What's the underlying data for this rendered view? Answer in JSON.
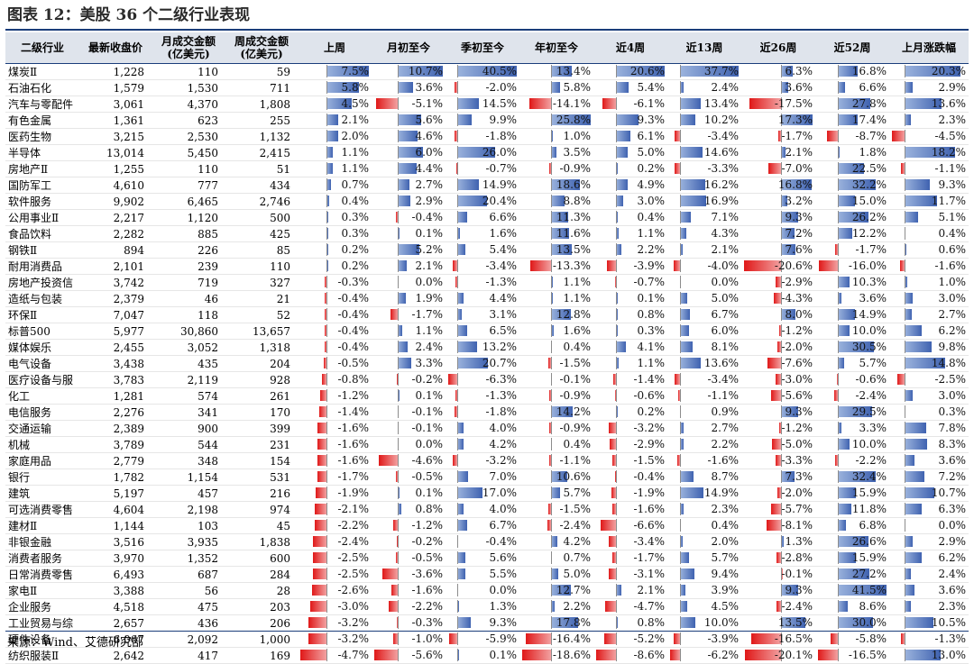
{
  "title": "图表 12：美股 36 个二级行业表现",
  "source": "来源：Wind、艾德研究部",
  "headers": [
    "二级行业",
    "最新收盘价",
    "月成交金额\n(亿美元)",
    "周成交金额\n(亿美元)",
    "上周",
    "月初至今",
    "季初至今",
    "年初至今",
    "近4周",
    "近13周",
    "近26周",
    "近52周",
    "上月涨跌幅"
  ],
  "colors": {
    "positive": "#3f62b0",
    "negative": "#e01818",
    "header_bg": "#dfe4ec",
    "rule": "#1a3d7a"
  },
  "rows": [
    {
      "name": "煤炭Ⅱ",
      "close": "1,228",
      "month_amt": "110",
      "week_amt": "59",
      "perf": [
        7.5,
        10.7,
        40.5,
        13.4,
        20.6,
        37.7,
        6.3,
        16.8,
        20.3
      ]
    },
    {
      "name": "石油石化",
      "close": "1,579",
      "month_amt": "1,530",
      "week_amt": "711",
      "perf": [
        5.8,
        3.6,
        -2.0,
        5.8,
        5.4,
        2.4,
        3.6,
        6.6,
        2.9
      ]
    },
    {
      "name": "汽车与零配件",
      "close": "3,061",
      "month_amt": "4,370",
      "week_amt": "1,808",
      "perf": [
        4.5,
        -5.1,
        14.5,
        -14.1,
        -6.1,
        13.4,
        -17.5,
        27.8,
        13.6
      ]
    },
    {
      "name": "有色金属",
      "close": "1,361",
      "month_amt": "623",
      "week_amt": "255",
      "perf": [
        2.1,
        5.6,
        9.9,
        25.8,
        9.3,
        10.2,
        17.3,
        17.4,
        2.3
      ]
    },
    {
      "name": "医药生物",
      "close": "3,215",
      "month_amt": "2,530",
      "week_amt": "1,132",
      "perf": [
        2.0,
        4.6,
        -1.8,
        1.0,
        6.1,
        -3.4,
        -1.7,
        -8.7,
        -4.5
      ]
    },
    {
      "name": "半导体",
      "close": "13,014",
      "month_amt": "5,450",
      "week_amt": "2,415",
      "perf": [
        1.1,
        6.0,
        26.0,
        3.5,
        5.0,
        14.6,
        2.1,
        1.8,
        18.2
      ]
    },
    {
      "name": "房地产Ⅱ",
      "close": "1,255",
      "month_amt": "110",
      "week_amt": "51",
      "perf": [
        1.1,
        4.4,
        -0.7,
        -0.9,
        0.2,
        -3.3,
        -7.0,
        22.5,
        -1.1
      ]
    },
    {
      "name": "国防军工",
      "close": "4,610",
      "month_amt": "777",
      "week_amt": "434",
      "perf": [
        0.7,
        2.7,
        14.9,
        18.6,
        4.9,
        16.2,
        16.8,
        32.2,
        9.3
      ]
    },
    {
      "name": "软件服务",
      "close": "9,902",
      "month_amt": "6,465",
      "week_amt": "2,746",
      "perf": [
        0.4,
        2.9,
        20.4,
        8.8,
        3.0,
        16.9,
        3.2,
        15.0,
        11.7
      ]
    },
    {
      "name": "公用事业Ⅱ",
      "close": "2,217",
      "month_amt": "1,120",
      "week_amt": "500",
      "perf": [
        0.3,
        -0.4,
        6.6,
        11.3,
        0.4,
        7.1,
        9.3,
        26.2,
        5.1
      ]
    },
    {
      "name": "食品饮料",
      "close": "2,282",
      "month_amt": "885",
      "week_amt": "425",
      "perf": [
        0.3,
        0.1,
        1.6,
        11.6,
        1.1,
        4.3,
        7.2,
        12.2,
        0.4
      ]
    },
    {
      "name": "钢铁Ⅱ",
      "close": "894",
      "month_amt": "226",
      "week_amt": "85",
      "perf": [
        0.2,
        5.2,
        5.4,
        13.5,
        2.2,
        2.1,
        7.6,
        -1.7,
        0.6
      ]
    },
    {
      "name": "耐用消费品",
      "close": "2,101",
      "month_amt": "239",
      "week_amt": "110",
      "perf": [
        0.2,
        2.1,
        -3.4,
        -13.3,
        -3.9,
        -4.0,
        -20.6,
        -16.0,
        -1.6
      ]
    },
    {
      "name": "房地产投资信",
      "close": "3,742",
      "month_amt": "719",
      "week_amt": "327",
      "perf": [
        -0.3,
        0.0,
        -1.3,
        1.1,
        -0.7,
        0.0,
        -2.9,
        10.3,
        1.0
      ]
    },
    {
      "name": "造纸与包装",
      "close": "2,379",
      "month_amt": "46",
      "week_amt": "21",
      "perf": [
        -0.4,
        1.9,
        4.4,
        1.1,
        0.1,
        5.0,
        -4.3,
        3.6,
        3.0
      ]
    },
    {
      "name": "环保Ⅱ",
      "close": "7,047",
      "month_amt": "118",
      "week_amt": "52",
      "perf": [
        -0.4,
        -1.7,
        3.1,
        12.8,
        0.8,
        6.7,
        8.0,
        14.9,
        2.7
      ]
    },
    {
      "name": "标普500",
      "close": "5,977",
      "month_amt": "30,860",
      "week_amt": "13,657",
      "perf": [
        -0.4,
        1.1,
        6.5,
        1.6,
        0.3,
        6.0,
        -1.2,
        10.0,
        6.2
      ]
    },
    {
      "name": "媒体娱乐",
      "close": "2,455",
      "month_amt": "3,052",
      "week_amt": "1,318",
      "perf": [
        -0.4,
        2.4,
        13.2,
        0.4,
        4.1,
        8.1,
        -2.0,
        30.5,
        9.8
      ]
    },
    {
      "name": "电气设备",
      "close": "3,438",
      "month_amt": "435",
      "week_amt": "204",
      "perf": [
        -0.5,
        3.3,
        20.7,
        -1.5,
        1.1,
        13.6,
        -7.6,
        5.7,
        14.8
      ]
    },
    {
      "name": "医疗设备与服",
      "close": "3,783",
      "month_amt": "2,119",
      "week_amt": "928",
      "perf": [
        -0.8,
        -0.2,
        -6.3,
        -0.1,
        -1.4,
        -3.4,
        -3.0,
        -0.6,
        -2.5
      ]
    },
    {
      "name": "化工",
      "close": "1,281",
      "month_amt": "574",
      "week_amt": "261",
      "perf": [
        -1.2,
        0.1,
        -1.3,
        -0.9,
        -0.6,
        -1.1,
        -5.6,
        -2.4,
        3.0
      ]
    },
    {
      "name": "电信服务",
      "close": "2,276",
      "month_amt": "341",
      "week_amt": "170",
      "perf": [
        -1.4,
        -0.1,
        -1.8,
        14.2,
        0.2,
        0.9,
        9.3,
        29.5,
        0.3
      ]
    },
    {
      "name": "交通运输",
      "close": "2,389",
      "month_amt": "900",
      "week_amt": "399",
      "perf": [
        -1.6,
        -0.1,
        4.0,
        -0.9,
        -3.2,
        2.7,
        -1.2,
        3.3,
        7.8
      ]
    },
    {
      "name": "机械",
      "close": "3,789",
      "month_amt": "544",
      "week_amt": "231",
      "perf": [
        -1.6,
        0.0,
        4.2,
        0.4,
        -2.9,
        2.2,
        -5.0,
        10.0,
        8.3
      ]
    },
    {
      "name": "家庭用品",
      "close": "2,779",
      "month_amt": "348",
      "week_amt": "154",
      "perf": [
        -1.6,
        -4.6,
        -3.2,
        -1.1,
        -1.5,
        -1.6,
        -3.3,
        -2.2,
        3.6
      ]
    },
    {
      "name": "银行",
      "close": "1,782",
      "month_amt": "1,154",
      "week_amt": "531",
      "perf": [
        -1.7,
        -0.5,
        7.0,
        10.6,
        -0.4,
        8.7,
        7.3,
        32.4,
        7.2
      ]
    },
    {
      "name": "建筑",
      "close": "5,197",
      "month_amt": "457",
      "week_amt": "216",
      "perf": [
        -1.9,
        0.1,
        17.0,
        5.7,
        -1.9,
        14.9,
        -2.0,
        15.9,
        10.7
      ]
    },
    {
      "name": "可选消费零售",
      "close": "4,604",
      "month_amt": "2,198",
      "week_amt": "974",
      "perf": [
        -2.1,
        0.8,
        4.0,
        -1.5,
        -1.6,
        2.3,
        -5.7,
        11.8,
        6.3
      ]
    },
    {
      "name": "建材Ⅱ",
      "close": "1,144",
      "month_amt": "103",
      "week_amt": "45",
      "perf": [
        -2.2,
        -1.2,
        6.7,
        -2.4,
        -6.6,
        0.4,
        -8.1,
        6.8,
        0.0
      ]
    },
    {
      "name": "非银金融",
      "close": "3,516",
      "month_amt": "3,935",
      "week_amt": "1,838",
      "perf": [
        -2.4,
        -0.2,
        -0.4,
        4.2,
        -3.4,
        2.0,
        1.3,
        26.6,
        2.9
      ]
    },
    {
      "name": "消费者服务",
      "close": "3,970",
      "month_amt": "1,352",
      "week_amt": "600",
      "perf": [
        -2.5,
        -0.5,
        5.6,
        0.7,
        -1.7,
        5.7,
        -2.8,
        15.9,
        6.2
      ]
    },
    {
      "name": "日常消费零售",
      "close": "6,493",
      "month_amt": "687",
      "week_amt": "284",
      "perf": [
        -2.5,
        -3.6,
        5.5,
        5.0,
        -3.1,
        9.4,
        -0.1,
        27.2,
        2.4
      ]
    },
    {
      "name": "家电Ⅱ",
      "close": "3,388",
      "month_amt": "56",
      "week_amt": "28",
      "perf": [
        -2.6,
        -1.6,
        0.0,
        12.7,
        2.1,
        3.9,
        9.3,
        41.5,
        3.6
      ]
    },
    {
      "name": "企业服务",
      "close": "4,518",
      "month_amt": "475",
      "week_amt": "203",
      "perf": [
        -3.0,
        -2.2,
        1.3,
        2.2,
        -4.7,
        4.5,
        -2.4,
        8.6,
        2.3
      ]
    },
    {
      "name": "工业贸易与综",
      "close": "2,657",
      "month_amt": "436",
      "week_amt": "206",
      "perf": [
        -3.2,
        -0.3,
        9.3,
        17.8,
        0.8,
        10.0,
        13.5,
        30.0,
        10.5
      ]
    },
    {
      "name": "硬件设备",
      "close": "6,067",
      "month_amt": "2,092",
      "week_amt": "1,000",
      "perf": [
        -3.2,
        -1.0,
        -5.9,
        -16.4,
        -5.2,
        -3.9,
        -16.5,
        -5.8,
        -1.3
      ]
    },
    {
      "name": "纺织服装Ⅱ",
      "close": "2,642",
      "month_amt": "417",
      "week_amt": "169",
      "perf": [
        -4.7,
        -5.6,
        0.1,
        -18.6,
        -8.6,
        -6.2,
        -20.1,
        -16.5,
        13.0
      ]
    }
  ]
}
